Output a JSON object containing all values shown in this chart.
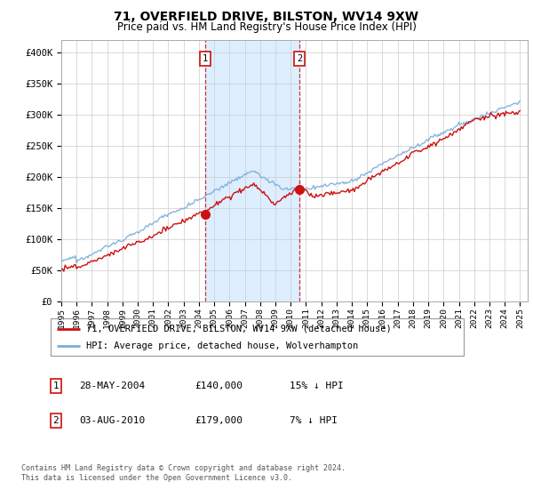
{
  "title": "71, OVERFIELD DRIVE, BILSTON, WV14 9XW",
  "subtitle": "Price paid vs. HM Land Registry's House Price Index (HPI)",
  "title_fontsize": 10,
  "subtitle_fontsize": 8.5,
  "ylabel_ticks": [
    "£0",
    "£50K",
    "£100K",
    "£150K",
    "£200K",
    "£250K",
    "£300K",
    "£350K",
    "£400K"
  ],
  "ytick_values": [
    0,
    50000,
    100000,
    150000,
    200000,
    250000,
    300000,
    350000,
    400000
  ],
  "ylim": [
    0,
    420000
  ],
  "xlim_start": 1995.0,
  "xlim_end": 2025.5,
  "hpi_color": "#7aaddb",
  "price_color": "#cc1111",
  "purchase1_date": 2004.41,
  "purchase1_price": 140000,
  "purchase2_date": 2010.59,
  "purchase2_price": 179000,
  "shade_color": "#ddeeff",
  "vline_color": "#cc1111",
  "legend_label1": "71, OVERFIELD DRIVE, BILSTON, WV14 9XW (detached house)",
  "legend_label2": "HPI: Average price, detached house, Wolverhampton",
  "footer1": "Contains HM Land Registry data © Crown copyright and database right 2024.",
  "footer2": "This data is licensed under the Open Government Licence v3.0.",
  "background_color": "#ffffff",
  "plot_bg_color": "#ffffff",
  "grid_color": "#cccccc"
}
